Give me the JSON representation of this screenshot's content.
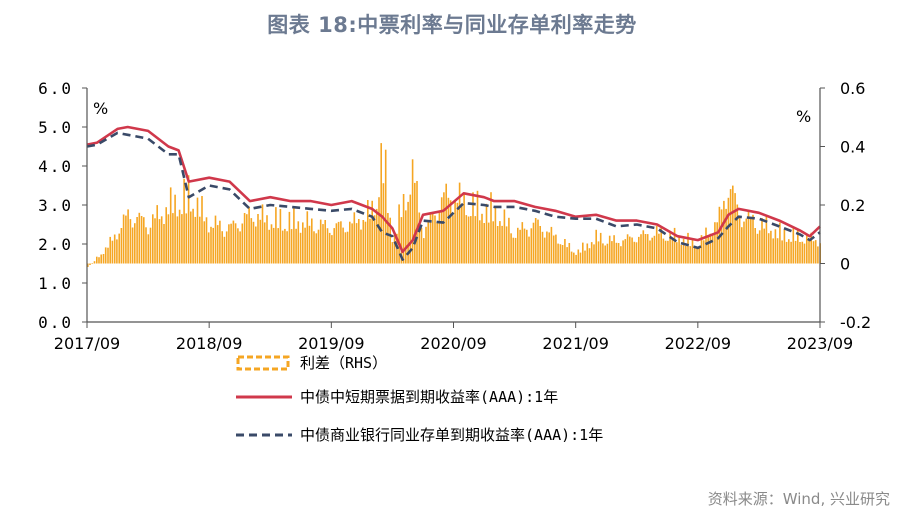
{
  "title": "图表 18:中票利率与同业存单利率走势",
  "source": "资料来源：Wind, 兴业研究",
  "colors": {
    "spread": "#f5a623",
    "mtn": "#d0384b",
    "ncd": "#3a4a68",
    "axis": "#555555",
    "title": "#6c7a91"
  },
  "chart_data": {
    "type": "line",
    "x_ticks": [
      "2017/09",
      "2018/09",
      "2019/09",
      "2020/09",
      "2021/09",
      "2022/09",
      "2023/09"
    ],
    "x_range": [
      "2017-09",
      "2023-09"
    ],
    "y_left": {
      "unit": "%",
      "ylim": [
        0,
        6
      ],
      "ticks": [
        "0.0",
        "1.0",
        "2.0",
        "3.0",
        "4.0",
        "5.0",
        "6.0"
      ]
    },
    "y_right": {
      "unit": "%",
      "ylim": [
        -0.2,
        0.6
      ],
      "ticks": [
        "-0.2",
        "0",
        "0.2",
        "0.4",
        "0.6"
      ]
    },
    "grid": false,
    "legend_position": "bottom",
    "series": [
      {
        "name": "利差（RHS）",
        "type": "bar",
        "axis": "right",
        "color": "#f5a623",
        "x": [
          "2017-09",
          "2017-11",
          "2018-01",
          "2018-03",
          "2018-05",
          "2018-07",
          "2018-09",
          "2018-11",
          "2019-01",
          "2019-03",
          "2019-05",
          "2019-07",
          "2019-09",
          "2019-11",
          "2020-01",
          "2020-02",
          "2020-03",
          "2020-04",
          "2020-05",
          "2020-06",
          "2020-07",
          "2020-08",
          "2020-09",
          "2020-11",
          "2021-01",
          "2021-03",
          "2021-05",
          "2021-07",
          "2021-09",
          "2021-11",
          "2022-01",
          "2022-03",
          "2022-05",
          "2022-07",
          "2022-09",
          "2022-11",
          "2022-12",
          "2023-01",
          "2023-03",
          "2023-05",
          "2023-07",
          "2023-09"
        ],
        "values": [
          -0.02,
          0.08,
          0.22,
          0.18,
          0.26,
          0.32,
          0.18,
          0.16,
          0.22,
          0.2,
          0.2,
          0.18,
          0.16,
          0.18,
          0.24,
          0.5,
          0.1,
          0.28,
          0.4,
          0.14,
          0.22,
          0.3,
          0.3,
          0.26,
          0.24,
          0.14,
          0.18,
          0.12,
          0.05,
          0.12,
          0.1,
          0.12,
          0.14,
          0.12,
          0.09,
          0.2,
          0.36,
          0.22,
          0.18,
          0.14,
          0.12,
          0.1
        ]
      },
      {
        "name": "中债中短期票据到期收益率(AAA):1年",
        "type": "line",
        "axis": "left",
        "color": "#d0384b",
        "x": [
          "2017-09",
          "2017-10",
          "2017-12",
          "2018-01",
          "2018-03",
          "2018-05",
          "2018-06",
          "2018-07",
          "2018-09",
          "2018-11",
          "2019-01",
          "2019-03",
          "2019-05",
          "2019-07",
          "2019-09",
          "2019-11",
          "2020-01",
          "2020-02",
          "2020-03",
          "2020-04",
          "2020-05",
          "2020-06",
          "2020-08",
          "2020-10",
          "2020-12",
          "2021-01",
          "2021-03",
          "2021-05",
          "2021-07",
          "2021-09",
          "2021-11",
          "2022-01",
          "2022-03",
          "2022-05",
          "2022-07",
          "2022-09",
          "2022-11",
          "2022-12",
          "2023-01",
          "2023-03",
          "2023-05",
          "2023-07",
          "2023-08",
          "2023-09"
        ],
        "values": [
          4.55,
          4.6,
          4.95,
          5.0,
          4.9,
          4.5,
          4.4,
          3.6,
          3.7,
          3.6,
          3.1,
          3.2,
          3.1,
          3.1,
          3.0,
          3.1,
          2.9,
          2.7,
          2.4,
          1.8,
          2.1,
          2.75,
          2.85,
          3.3,
          3.2,
          3.1,
          3.1,
          2.95,
          2.85,
          2.7,
          2.75,
          2.6,
          2.6,
          2.5,
          2.2,
          2.1,
          2.3,
          2.75,
          2.9,
          2.8,
          2.6,
          2.35,
          2.2,
          2.45
        ]
      },
      {
        "name": "中债商业银行同业存单到期收益率(AAA):1年",
        "type": "line",
        "axis": "left",
        "color": "#3a4a68",
        "dashed": true,
        "x": [
          "2017-09",
          "2017-10",
          "2017-12",
          "2018-01",
          "2018-03",
          "2018-05",
          "2018-06",
          "2018-07",
          "2018-09",
          "2018-11",
          "2019-01",
          "2019-03",
          "2019-05",
          "2019-07",
          "2019-09",
          "2019-11",
          "2020-01",
          "2020-02",
          "2020-03",
          "2020-04",
          "2020-05",
          "2020-06",
          "2020-08",
          "2020-10",
          "2020-12",
          "2021-01",
          "2021-03",
          "2021-05",
          "2021-07",
          "2021-09",
          "2021-11",
          "2022-01",
          "2022-03",
          "2022-05",
          "2022-07",
          "2022-09",
          "2022-11",
          "2022-12",
          "2023-01",
          "2023-03",
          "2023-05",
          "2023-07",
          "2023-08",
          "2023-09"
        ],
        "values": [
          4.5,
          4.55,
          4.85,
          4.8,
          4.7,
          4.3,
          4.3,
          3.2,
          3.5,
          3.4,
          2.9,
          3.0,
          2.95,
          2.9,
          2.85,
          2.9,
          2.7,
          2.3,
          2.2,
          1.6,
          1.9,
          2.6,
          2.55,
          3.05,
          3.0,
          2.95,
          2.95,
          2.85,
          2.7,
          2.65,
          2.65,
          2.45,
          2.5,
          2.4,
          2.05,
          1.9,
          2.15,
          2.45,
          2.7,
          2.65,
          2.45,
          2.25,
          2.1,
          2.3
        ]
      }
    ]
  }
}
